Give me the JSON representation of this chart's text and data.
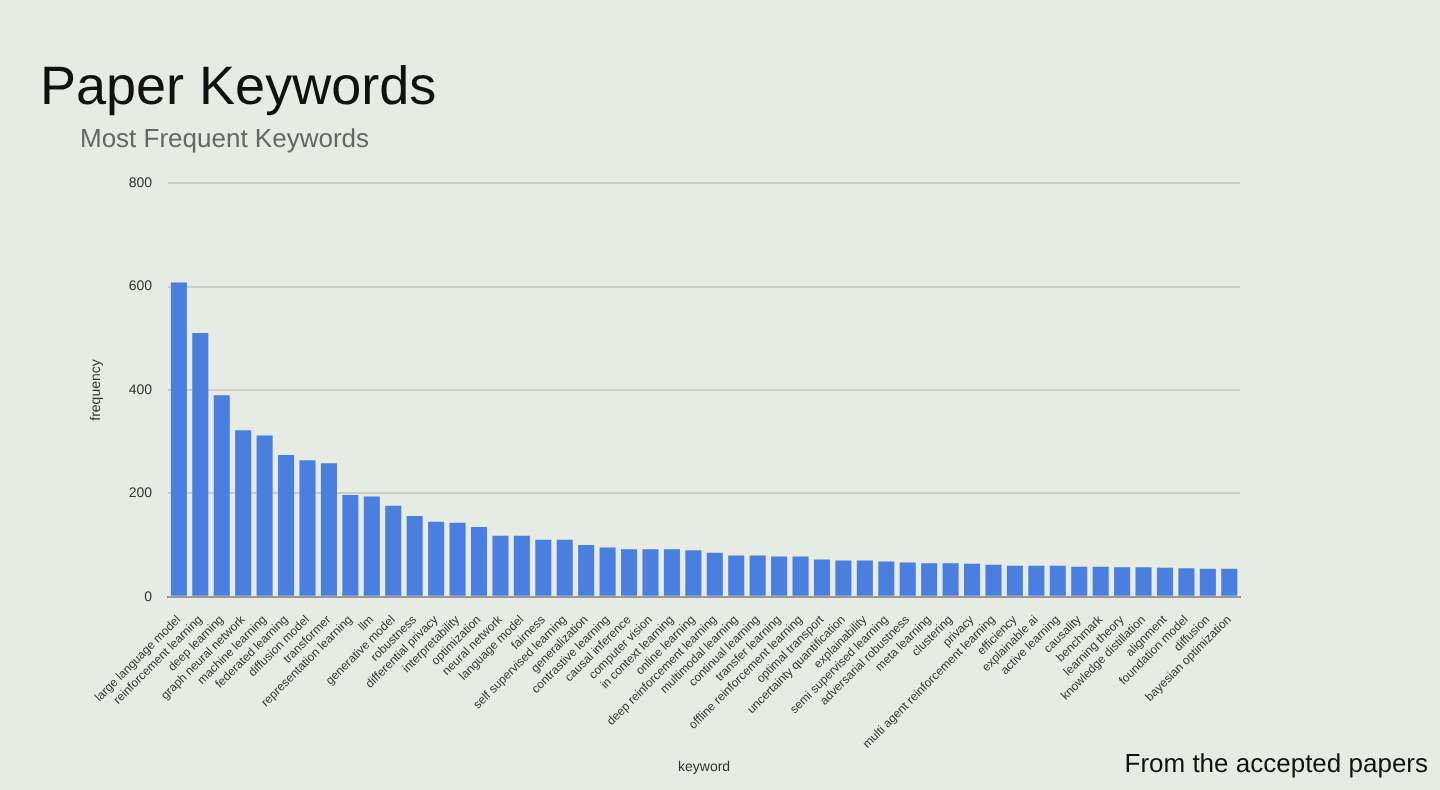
{
  "chart_data": {
    "type": "bar",
    "title": "Paper Keywords",
    "subtitle": "Most Frequent Keywords",
    "xlabel": "keyword",
    "ylabel": "frequency",
    "categories": [
      "large language model",
      "reinforcement learning",
      "deep learning",
      "graph neural network",
      "machine learning",
      "federated learning",
      "diffusion model",
      "transformer",
      "representation learning",
      "llm",
      "generative model",
      "robustness",
      "differential privacy",
      "interpretability",
      "optimization",
      "neural network",
      "language model",
      "fairness",
      "self supervised learning",
      "generalization",
      "contrastive learning",
      "causal inference",
      "computer vision",
      "in context learning",
      "online learning",
      "deep reinforcement learning",
      "multimodal learning",
      "continual learning",
      "transfer learning",
      "offline reinforcement learning",
      "optimal transport",
      "uncertainty quantification",
      "explainability",
      "semi supervised learning",
      "adversarial robustness",
      "meta learning",
      "clustering",
      "privacy",
      "multi agent reinforcement learning",
      "efficiency",
      "explainable ai",
      "active learning",
      "causality",
      "benchmark",
      "learning theory",
      "knowledge distillation",
      "alignment",
      "foundation model",
      "diffusion",
      "bayesian optimization"
    ],
    "values": [
      608,
      510,
      390,
      322,
      312,
      274,
      264,
      258,
      197,
      194,
      176,
      156,
      145,
      143,
      135,
      118,
      118,
      110,
      110,
      100,
      95,
      92,
      92,
      92,
      90,
      85,
      80,
      80,
      78,
      78,
      72,
      70,
      70,
      68,
      66,
      65,
      65,
      64,
      62,
      60,
      60,
      60,
      58,
      58,
      57,
      57,
      56,
      55,
      54,
      54
    ],
    "color": "#4a7fe0",
    "ylim": [
      0,
      800
    ],
    "yticks": [
      0,
      200,
      400,
      600,
      800
    ],
    "grid": "y",
    "annotations": [
      "From the accepted papers"
    ]
  }
}
